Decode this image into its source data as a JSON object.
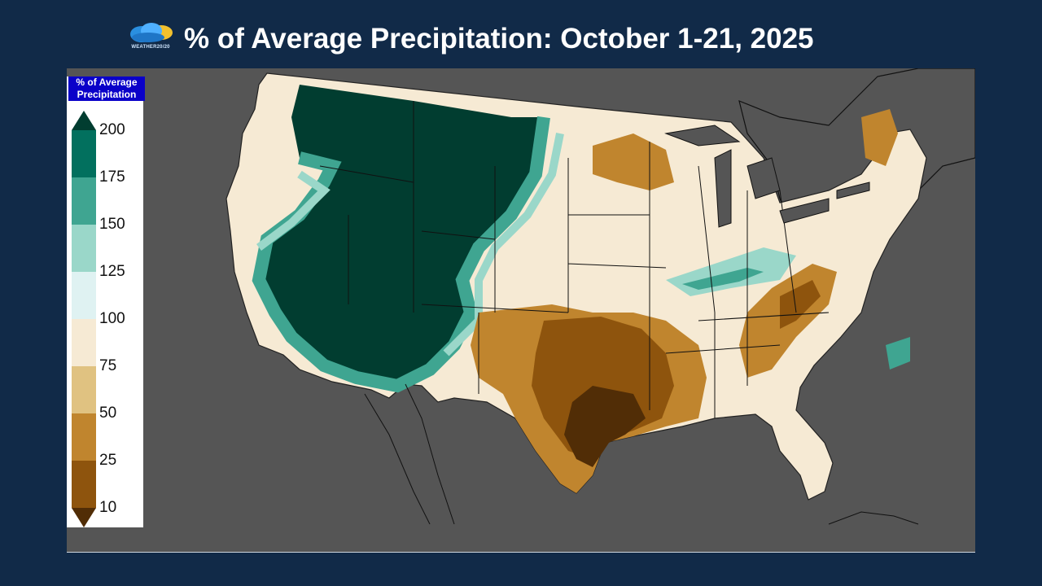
{
  "header": {
    "title": "% of Average Precipitation: October 1-21, 2025",
    "logo_text": "WEATHER20/20"
  },
  "legend": {
    "title_line1": "% of Average",
    "title_line2": "Precipitation",
    "ticks": [
      "200",
      "175",
      "150",
      "125",
      "100",
      "75",
      "50",
      "25",
      "10"
    ],
    "bins": [
      {
        "range": "175-200",
        "color": "#02705e"
      },
      {
        "range": "150-175",
        "color": "#3fa591"
      },
      {
        "range": "125-150",
        "color": "#9ad7c9"
      },
      {
        "range": "100-125",
        "color": "#dff2f2"
      },
      {
        "range": "75-100",
        "color": "#f6ead4"
      },
      {
        "range": "50-75",
        "color": "#e0c281"
      },
      {
        "range": "25-50",
        "color": "#c0852e"
      },
      {
        "range": "10-25",
        "color": "#8e540d"
      }
    ],
    "over_color": "#013d30",
    "under_color": "#512d06"
  },
  "colors": {
    "background": "#112a48",
    "map_background": "#555555",
    "land_outside": "#555555"
  }
}
